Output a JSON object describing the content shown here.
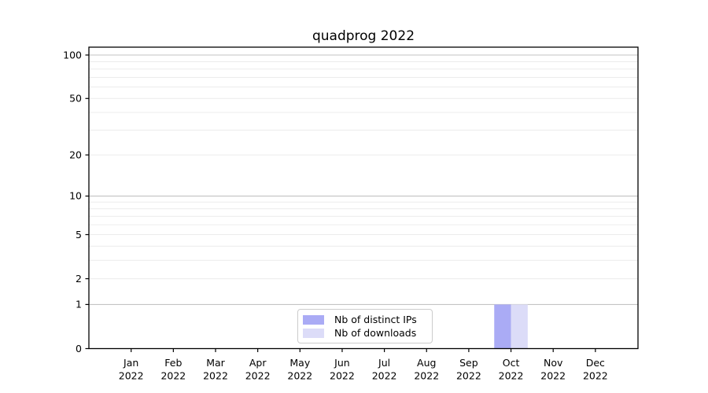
{
  "figure": {
    "background": "#ffffff"
  },
  "chart_data": {
    "type": "bar",
    "title": "quadprog 2022",
    "categories": [
      "Jan",
      "Feb",
      "Mar",
      "Apr",
      "May",
      "Jun",
      "Jul",
      "Aug",
      "Sep",
      "Oct",
      "Nov",
      "Dec"
    ],
    "x_year_label": "2022",
    "series": [
      {
        "name": "Nb of distinct IPs",
        "color": "#aaabf5",
        "values": [
          0,
          0,
          0,
          0,
          0,
          0,
          0,
          0,
          0,
          1,
          0,
          0
        ]
      },
      {
        "name": "Nb of downloads",
        "color": "#dcdcf8",
        "values": [
          0,
          0,
          0,
          0,
          0,
          0,
          0,
          0,
          0,
          1,
          0,
          0
        ]
      }
    ],
    "y_axis": {
      "scale": "log1p",
      "ticks": [
        0,
        1,
        2,
        5,
        10,
        20,
        50,
        100
      ],
      "major_gridlines": [
        1,
        10,
        100
      ],
      "minor_gridlines": [
        2,
        3,
        4,
        5,
        6,
        7,
        8,
        9,
        20,
        30,
        40,
        50,
        60,
        70,
        80,
        90
      ],
      "range": [
        0,
        113
      ]
    },
    "grid": "horizontal-only",
    "legend_position": "lower center",
    "colors": {
      "spine": "#000000",
      "tick_text": "#000000",
      "major_grid": "#c3c3c3",
      "minor_grid": "#ececec"
    }
  }
}
